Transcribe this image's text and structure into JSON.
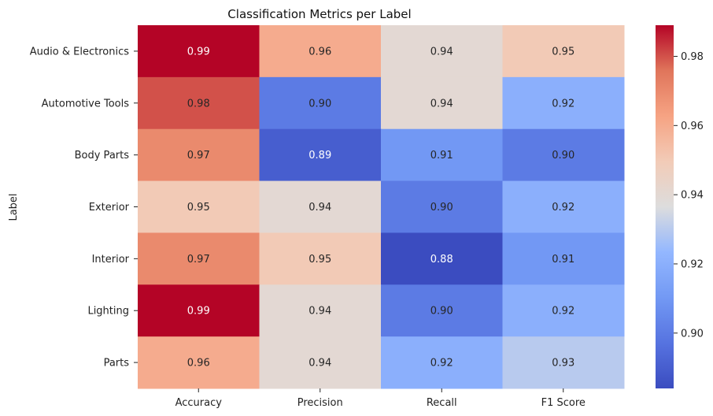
{
  "chart_data": {
    "type": "heatmap",
    "title": "Classification Metrics per Label",
    "xlabel": "",
    "ylabel": "Label",
    "columns": [
      "Accuracy",
      "Precision",
      "Recall",
      "F1 Score"
    ],
    "rows": [
      "Audio & Electronics",
      "Automotive Tools",
      "Body Parts",
      "Exterior",
      "Interior",
      "Lighting",
      "Parts"
    ],
    "values": [
      [
        0.99,
        0.96,
        0.94,
        0.95
      ],
      [
        0.98,
        0.9,
        0.94,
        0.92
      ],
      [
        0.97,
        0.89,
        0.91,
        0.9
      ],
      [
        0.95,
        0.94,
        0.9,
        0.92
      ],
      [
        0.97,
        0.95,
        0.88,
        0.91
      ],
      [
        0.99,
        0.94,
        0.9,
        0.92
      ],
      [
        0.96,
        0.94,
        0.92,
        0.93
      ]
    ],
    "annotation_format": "0.00",
    "colormap": "coolwarm",
    "color_range": [
      0.884,
      0.989
    ],
    "colorbar_ticks": [
      0.9,
      0.92,
      0.94,
      0.96,
      0.98
    ],
    "colorbar_tick_labels": [
      "0.90",
      "0.92",
      "0.94",
      "0.96",
      "0.98"
    ]
  }
}
